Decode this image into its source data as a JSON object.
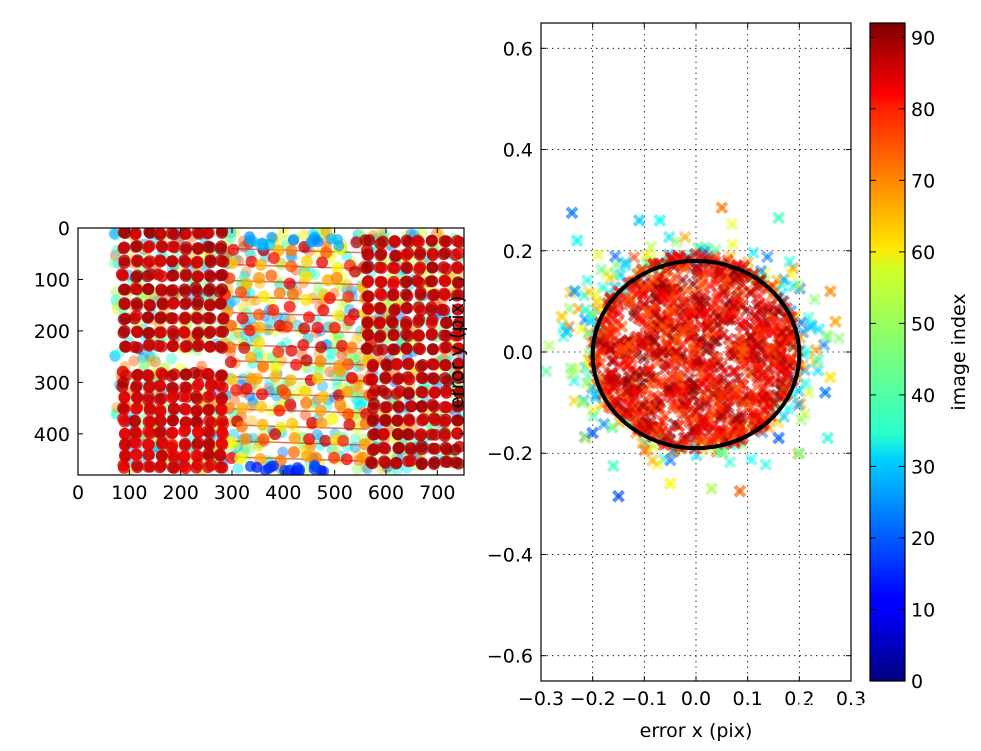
{
  "chart_data": [
    {
      "type": "scatter",
      "title": "",
      "xlabel": "",
      "ylabel": "",
      "xlim": [
        0,
        752
      ],
      "ylim": [
        480,
        0
      ],
      "xticks": [
        0,
        100,
        200,
        300,
        400,
        500,
        600,
        700
      ],
      "yticks": [
        0,
        100,
        200,
        300,
        400
      ],
      "colormap": "jet",
      "color_range": [
        0,
        92
      ],
      "grid": false,
      "description_of_points": "checkerboard corner detections across all images",
      "regions": [
        {
          "x": [
            90,
            280
          ],
          "y": [
            10,
            230
          ],
          "grid": [
            9,
            9
          ],
          "index": 90
        },
        {
          "x": [
            90,
            280
          ],
          "y": [
            285,
            465
          ],
          "grid": [
            9,
            9
          ],
          "index": 88
        },
        {
          "x": [
            565,
            740
          ],
          "y": [
            25,
            235
          ],
          "grid": [
            8,
            9
          ],
          "index": 89
        },
        {
          "x": [
            575,
            740
          ],
          "y": [
            265,
            455
          ],
          "grid": [
            8,
            8
          ],
          "index": 90
        },
        {
          "x": [
            300,
            560
          ],
          "y": [
            40,
            445
          ],
          "grid": [
            10,
            14
          ],
          "index": 72
        }
      ]
    },
    {
      "type": "scatter",
      "title": "",
      "xlabel": "error x (pix)",
      "ylabel": "error y (pix)",
      "xlim": [
        -0.3,
        0.3
      ],
      "ylim": [
        -0.65,
        0.65
      ],
      "xticks": [
        -0.3,
        -0.2,
        -0.1,
        0.0,
        0.1,
        0.2,
        0.3
      ],
      "yticks": [
        -0.6,
        -0.4,
        -0.2,
        0.0,
        0.2,
        0.4,
        0.6
      ],
      "xtick_labels": [
        "−0.3",
        "−0.2",
        "−0.1",
        "0.0",
        "0.1",
        "0.2",
        "0.3"
      ],
      "ytick_labels": [
        "−0.6",
        "−0.4",
        "−0.2",
        "0.0",
        "0.2",
        "0.4",
        "0.6"
      ],
      "grid": true,
      "marker": "x",
      "colormap": "jet",
      "circle": {
        "cx": 0.0,
        "cy": -0.005,
        "rx": 0.2,
        "ry": 0.185
      },
      "outliers": [
        {
          "x": -0.24,
          "y": 0.275,
          "index": 22
        },
        {
          "x": -0.23,
          "y": 0.22,
          "index": 35
        },
        {
          "x": -0.235,
          "y": 0.12,
          "index": 25
        },
        {
          "x": -0.26,
          "y": 0.07,
          "index": 62
        },
        {
          "x": -0.25,
          "y": 0.04,
          "index": 30
        },
        {
          "x": -0.22,
          "y": -0.1,
          "index": 48
        },
        {
          "x": -0.2,
          "y": -0.16,
          "index": 20
        },
        {
          "x": -0.15,
          "y": -0.285,
          "index": 18
        },
        {
          "x": -0.16,
          "y": -0.225,
          "index": 40
        },
        {
          "x": -0.11,
          "y": 0.26,
          "index": 30
        },
        {
          "x": -0.07,
          "y": 0.26,
          "index": 35
        },
        {
          "x": 0.05,
          "y": 0.285,
          "index": 70
        },
        {
          "x": 0.16,
          "y": 0.265,
          "index": 40
        },
        {
          "x": 0.26,
          "y": 0.12,
          "index": 68
        },
        {
          "x": 0.27,
          "y": 0.06,
          "index": 66
        },
        {
          "x": 0.26,
          "y": -0.05,
          "index": 60
        },
        {
          "x": 0.25,
          "y": -0.08,
          "index": 22
        },
        {
          "x": 0.255,
          "y": -0.17,
          "index": 38
        },
        {
          "x": 0.2,
          "y": -0.2,
          "index": 45
        },
        {
          "x": 0.085,
          "y": -0.275,
          "index": 72
        },
        {
          "x": 0.03,
          "y": -0.27,
          "index": 50
        },
        {
          "x": 0.16,
          "y": -0.17,
          "index": 20
        },
        {
          "x": -0.05,
          "y": -0.26,
          "index": 58
        }
      ]
    }
  ],
  "colorbar": {
    "label": "image index",
    "min": 0,
    "max": 92,
    "ticks": [
      0,
      10,
      20,
      30,
      40,
      50,
      60,
      70,
      80,
      90
    ],
    "tick_labels": [
      "0",
      "10",
      "20",
      "30",
      "40",
      "50",
      "60",
      "70",
      "80",
      "90"
    ]
  },
  "watermark": "知乎 @萝卜白菜"
}
